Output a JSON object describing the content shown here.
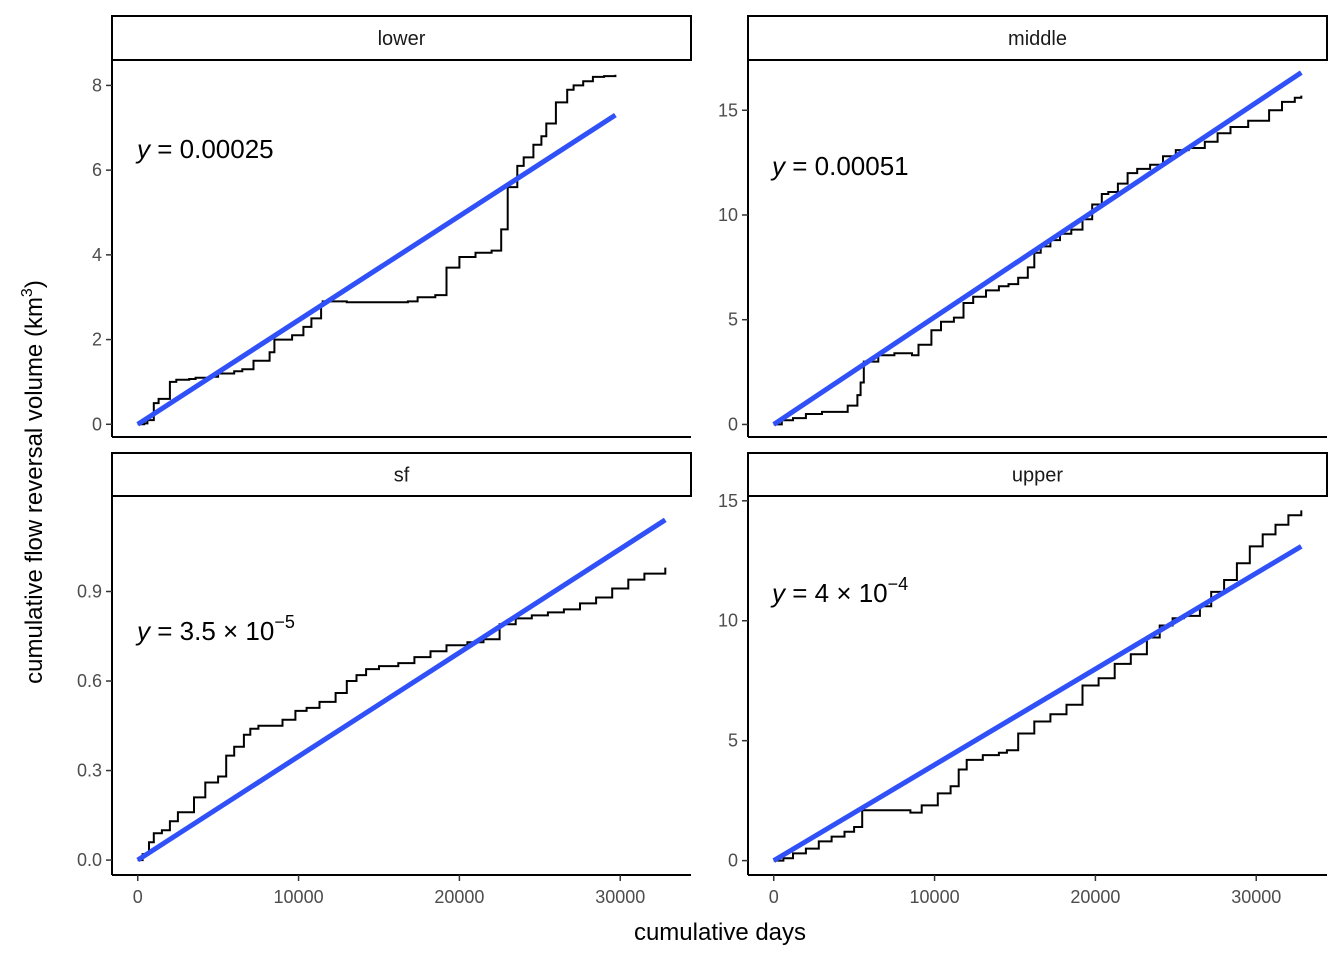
{
  "chart_data": {
    "type": "line",
    "xlabel": "cumulative days",
    "ylabel": "cumulative flow reversal volume (km",
    "ylabel_superscript": "3",
    "ylabel_suffix": ")",
    "colors": {
      "observed": "#000000",
      "fit": "#3050f8"
    },
    "grid": false,
    "panels": [
      {
        "strip": "lower",
        "equation": {
          "prefix": "y",
          "body": " = 0.00025",
          "exponent": ""
        },
        "xlim": [
          -1600,
          34400
        ],
        "ylim": [
          -0.3,
          8.6
        ],
        "xticks": [],
        "yticks": [
          0,
          2,
          4,
          6,
          8
        ],
        "fit": {
          "x": [
            0,
            29700
          ],
          "y": [
            0,
            7.3
          ]
        },
        "observed": {
          "x": [
            0,
            400,
            600,
            1000,
            1300,
            2000,
            2400,
            3200,
            3600,
            4500,
            5000,
            6000,
            6500,
            7200,
            8200,
            8500,
            9600,
            10300,
            10800,
            11400,
            11500,
            13000,
            15000,
            16800,
            17400,
            18000,
            18500,
            19200,
            20000,
            21000,
            22000,
            22600,
            23000,
            23600,
            24000,
            24600,
            25100,
            25400,
            26000,
            26700,
            27100,
            27700,
            28300,
            29000,
            29700
          ],
          "y": [
            0,
            0.02,
            0.1,
            0.5,
            0.6,
            1.0,
            1.05,
            1.07,
            1.1,
            1.12,
            1.2,
            1.25,
            1.3,
            1.5,
            1.7,
            2.0,
            2.1,
            2.3,
            2.5,
            2.8,
            2.9,
            2.88,
            2.88,
            2.9,
            3.0,
            3.0,
            3.05,
            3.7,
            3.95,
            4.05,
            4.1,
            4.6,
            5.6,
            6.1,
            6.3,
            6.6,
            6.8,
            7.1,
            7.6,
            7.9,
            8.0,
            8.1,
            8.2,
            8.22,
            8.25
          ]
        }
      },
      {
        "strip": "middle",
        "equation": {
          "prefix": "y",
          "body": " = 0.00051",
          "exponent": ""
        },
        "xlim": [
          -1600,
          34400
        ],
        "ylim": [
          -0.6,
          17.4
        ],
        "xticks": [],
        "yticks": [
          0,
          5,
          10,
          15
        ],
        "fit": {
          "x": [
            0,
            32800
          ],
          "y": [
            0,
            16.8
          ]
        },
        "observed": {
          "x": [
            0,
            500,
            1200,
            2000,
            3000,
            4000,
            4600,
            5200,
            5400,
            5600,
            6500,
            7500,
            8600,
            9000,
            9800,
            10400,
            11200,
            11800,
            12400,
            13200,
            14000,
            14600,
            15200,
            15800,
            16200,
            16600,
            17200,
            17800,
            18500,
            19200,
            19800,
            20400,
            20800,
            21400,
            22000,
            22600,
            23400,
            24200,
            25000,
            25800,
            26800,
            27600,
            28400,
            29500,
            30800,
            31600,
            32400,
            32800
          ],
          "y": [
            0,
            0.2,
            0.3,
            0.5,
            0.6,
            0.6,
            0.9,
            1.4,
            2.0,
            3.0,
            3.3,
            3.4,
            3.3,
            3.8,
            4.5,
            4.9,
            5.1,
            5.8,
            6.1,
            6.4,
            6.6,
            6.7,
            7.0,
            7.5,
            8.2,
            8.5,
            8.8,
            9.1,
            9.3,
            9.8,
            10.5,
            11.0,
            11.1,
            11.5,
            12.0,
            12.2,
            12.4,
            12.8,
            13.1,
            13.2,
            13.5,
            13.9,
            14.2,
            14.5,
            15.0,
            15.4,
            15.6,
            15.7
          ]
        }
      },
      {
        "strip": "sf",
        "equation": {
          "prefix": "y",
          "body": " = 3.5 × 10",
          "exponent": "−5"
        },
        "xlim": [
          -1600,
          34400
        ],
        "ylim": [
          -0.05,
          1.22
        ],
        "xticks": [
          0,
          10000,
          20000,
          30000
        ],
        "yticks": [
          0.0,
          0.3,
          0.6,
          0.9
        ],
        "ytick_labels": [
          "0.0",
          "0.3",
          "0.6",
          "0.9"
        ],
        "fit": {
          "x": [
            0,
            32800
          ],
          "y": [
            0,
            1.14
          ]
        },
        "observed": {
          "x": [
            0,
            300,
            700,
            1000,
            1500,
            2000,
            2500,
            3500,
            4200,
            5000,
            5500,
            6000,
            6600,
            7000,
            7500,
            8200,
            9000,
            9800,
            10500,
            11300,
            12300,
            13000,
            13600,
            14200,
            15000,
            16200,
            17200,
            18200,
            19200,
            20500,
            21500,
            22500,
            23500,
            24500,
            25500,
            26500,
            27500,
            28500,
            29500,
            30500,
            31500,
            32800
          ],
          "y": [
            0,
            0.02,
            0.06,
            0.09,
            0.1,
            0.13,
            0.16,
            0.21,
            0.26,
            0.28,
            0.35,
            0.38,
            0.42,
            0.44,
            0.45,
            0.45,
            0.47,
            0.5,
            0.51,
            0.53,
            0.56,
            0.6,
            0.62,
            0.64,
            0.65,
            0.66,
            0.68,
            0.7,
            0.72,
            0.73,
            0.74,
            0.79,
            0.81,
            0.82,
            0.83,
            0.84,
            0.86,
            0.88,
            0.91,
            0.94,
            0.96,
            0.98
          ]
        }
      },
      {
        "strip": "upper",
        "equation": {
          "prefix": "y",
          "body": " = 4 × 10",
          "exponent": "−4"
        },
        "xlim": [
          -1600,
          34400
        ],
        "ylim": [
          -0.6,
          15.2
        ],
        "xticks": [
          0,
          10000,
          20000,
          30000
        ],
        "yticks": [
          0,
          5,
          10,
          15
        ],
        "fit": {
          "x": [
            0,
            32800
          ],
          "y": [
            0,
            13.1
          ]
        },
        "observed": {
          "x": [
            0,
            600,
            1200,
            2000,
            2800,
            3600,
            4400,
            5000,
            5500,
            6500,
            7500,
            8500,
            9200,
            10200,
            11000,
            11500,
            12000,
            13000,
            14000,
            14500,
            15200,
            16200,
            17200,
            18200,
            19200,
            20200,
            21200,
            22200,
            23200,
            24000,
            24800,
            25500,
            26500,
            27200,
            28000,
            28800,
            29600,
            30400,
            31200,
            32000,
            32800
          ],
          "y": [
            0,
            0.1,
            0.3,
            0.5,
            0.8,
            1.0,
            1.2,
            1.4,
            2.1,
            2.1,
            2.1,
            2.0,
            2.3,
            2.8,
            3.1,
            3.8,
            4.2,
            4.4,
            4.5,
            4.6,
            5.3,
            5.8,
            6.1,
            6.5,
            7.3,
            7.6,
            8.2,
            8.6,
            9.3,
            9.8,
            10.1,
            10.2,
            10.6,
            11.2,
            11.7,
            12.4,
            13.1,
            13.6,
            14.0,
            14.4,
            14.6
          ]
        }
      }
    ]
  }
}
